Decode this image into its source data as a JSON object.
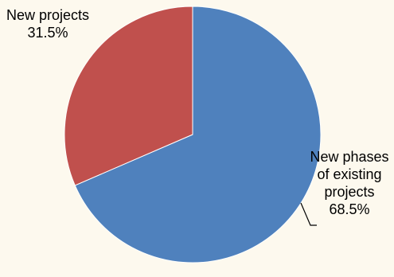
{
  "chart_data": {
    "type": "pie",
    "title": "",
    "slices": [
      {
        "name": "New phases of existing projects",
        "value": 68.5,
        "label": "68.5%",
        "color": "#4F81BD"
      },
      {
        "name": "New projects",
        "value": 31.5,
        "label": "31.5%",
        "color": "#C0504D"
      }
    ],
    "legend": "none",
    "start_angle_deg": 0,
    "direction": "clockwise"
  },
  "colors": {
    "background": "#FDF9EE",
    "slice_border": "#FFFFFF",
    "leader_line": "#000000"
  }
}
